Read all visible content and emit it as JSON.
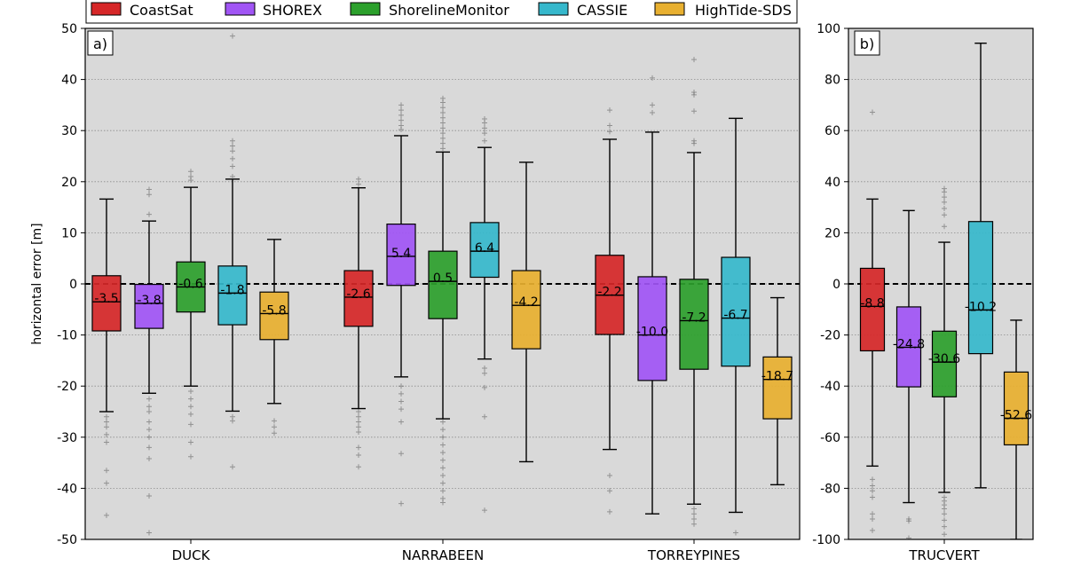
{
  "legend": {
    "entries": [
      {
        "name": "CoastSat",
        "color": "#d62728"
      },
      {
        "name": "SHOREX",
        "color": "#a155f5"
      },
      {
        "name": "ShorelineMonitor",
        "color": "#2ca02c"
      },
      {
        "name": "CASSIE",
        "color": "#36b8cc"
      },
      {
        "name": "HighTide-SDS",
        "color": "#e8b030"
      }
    ]
  },
  "chart_data": [
    {
      "type": "boxplot",
      "panel_label": "a)",
      "title": "",
      "xlabel": "",
      "ylabel": "horizontal error [m]",
      "ylim": [
        -50,
        50
      ],
      "yticks": [
        -50,
        -40,
        -30,
        -20,
        -10,
        0,
        10,
        20,
        30,
        40,
        50
      ],
      "grid": "horizontal dotted",
      "reference_line": 0,
      "categories": [
        "DUCK",
        "NARRABEEN",
        "TORREYPINES"
      ],
      "groups": [
        {
          "site": "DUCK",
          "boxes": [
            {
              "method": "CoastSat",
              "median": -3.5,
              "label": "-3.5",
              "q1": -9.2,
              "q3": 1.6,
              "whisker_low": -25,
              "whisker_high": 16.6,
              "outliers": [
                -26,
                -27,
                -28,
                -29.5,
                -31,
                -36.5,
                -39,
                -45.3
              ]
            },
            {
              "method": "SHOREX",
              "median": -3.8,
              "label": "-3.8",
              "q1": -8.7,
              "q3": -0.1,
              "whisker_low": -21.4,
              "whisker_high": 12.3,
              "outliers": [
                13.6,
                17.5,
                18.5,
                -22.5,
                -24,
                -25,
                -27,
                -28.5,
                -30,
                -32,
                -34.2,
                -41.5,
                -48.7
              ]
            },
            {
              "method": "ShorelineMonitor",
              "median": -0.6,
              "label": "-0.6",
              "q1": -5.5,
              "q3": 4.3,
              "whisker_low": -20,
              "whisker_high": 18.9,
              "outliers": [
                20.3,
                21,
                22,
                -21,
                -22.5,
                -24,
                -25.5,
                -27.5,
                -31,
                -33.8
              ]
            },
            {
              "method": "CASSIE",
              "median": -1.8,
              "label": "-1.8",
              "q1": -8,
              "q3": 3.5,
              "whisker_low": -24.9,
              "whisker_high": 20.5,
              "outliers": [
                21,
                23,
                24.5,
                26,
                27,
                28,
                48.5,
                -26,
                -26.8,
                -35.8
              ]
            },
            {
              "method": "HighTide-SDS",
              "median": -5.8,
              "label": "-5.8",
              "q1": -10.9,
              "q3": -1.6,
              "whisker_low": -23.4,
              "whisker_high": 8.7,
              "outliers": [
                -26.8,
                -28,
                -29.2
              ]
            }
          ]
        },
        {
          "site": "NARRABEEN",
          "boxes": [
            {
              "method": "CoastSat",
              "median": -2.6,
              "label": "-2.6",
              "q1": -8.3,
              "q3": 2.6,
              "whisker_low": -24.4,
              "whisker_high": 18.8,
              "outliers": [
                19.5,
                20.5,
                -25,
                -26,
                -27,
                -28,
                -29,
                -32,
                -33.5,
                -35.8
              ]
            },
            {
              "method": "SHOREX",
              "median": 5.4,
              "label": "5.4",
              "q1": -0.3,
              "q3": 11.7,
              "whisker_low": -18.2,
              "whisker_high": 29,
              "outliers": [
                30.2,
                31,
                32,
                33,
                34,
                35,
                -20,
                -21.5,
                -23,
                -24.5,
                -27,
                -33.2,
                -43
              ]
            },
            {
              "method": "ShorelineMonitor",
              "median": 0.5,
              "label": "0.5",
              "q1": -6.8,
              "q3": 6.4,
              "whisker_low": -26.4,
              "whisker_high": 25.8,
              "outliers": [
                26.5,
                27.5,
                28.5,
                29.5,
                30.5,
                31.5,
                32.5,
                33.5,
                34.5,
                35.5,
                36.3,
                -27,
                -28.5,
                -30,
                -31.5,
                -33,
                -34.5,
                -36,
                -37.5,
                -39,
                -40.5,
                -42,
                -42.8
              ]
            },
            {
              "method": "CASSIE",
              "median": 6.4,
              "label": "6.4",
              "q1": 1.3,
              "q3": 12,
              "whisker_low": -14.7,
              "whisker_high": 26.7,
              "outliers": [
                28,
                29.5,
                30.5,
                31.5,
                32.3,
                -16.5,
                -17.5,
                -20.3,
                -26,
                -44.3
              ]
            },
            {
              "method": "HighTide-SDS",
              "median": -4.2,
              "label": "-4.2",
              "q1": -12.7,
              "q3": 2.6,
              "whisker_low": -34.8,
              "whisker_high": 23.8,
              "outliers": []
            }
          ]
        },
        {
          "site": "TORREYPINES",
          "boxes": [
            {
              "method": "CoastSat",
              "median": -2.2,
              "label": "-2.2",
              "q1": -9.9,
              "q3": 5.6,
              "whisker_low": -32.4,
              "whisker_high": 28.3,
              "outliers": [
                29.8,
                31,
                34,
                -37.5,
                -40.5,
                -44.6
              ]
            },
            {
              "method": "SHOREX",
              "median": -10,
              "label": "-10.0",
              "q1": -18.9,
              "q3": 1.4,
              "whisker_low": -45,
              "whisker_high": 29.7,
              "outliers": [
                33.5,
                35,
                40.3
              ]
            },
            {
              "method": "ShorelineMonitor",
              "median": -7.2,
              "label": "-7.2",
              "q1": -16.7,
              "q3": 0.9,
              "whisker_low": -43.1,
              "whisker_high": 25.7,
              "outliers": [
                27.5,
                28,
                33.8,
                37,
                37.5,
                43.9,
                -44,
                -45,
                -46,
                -47
              ]
            },
            {
              "method": "CASSIE",
              "median": -6.7,
              "label": "-6.7",
              "q1": -16.1,
              "q3": 5.2,
              "whisker_low": -44.7,
              "whisker_high": 32.4,
              "outliers": [
                -48.7
              ]
            },
            {
              "method": "HighTide-SDS",
              "median": -18.7,
              "label": "-18.7",
              "q1": -26.4,
              "q3": -14.3,
              "whisker_low": -39.3,
              "whisker_high": -2.7,
              "outliers": []
            }
          ]
        }
      ]
    },
    {
      "type": "boxplot",
      "panel_label": "b)",
      "title": "",
      "xlabel": "",
      "ylabel": "",
      "ylim": [
        -100,
        100
      ],
      "yticks": [
        -100,
        -80,
        -60,
        -40,
        -20,
        0,
        20,
        40,
        60,
        80,
        100
      ],
      "grid": "horizontal dotted",
      "reference_line": 0,
      "categories": [
        "TRUCVERT"
      ],
      "groups": [
        {
          "site": "TRUCVERT",
          "boxes": [
            {
              "method": "CoastSat",
              "median": -8.8,
              "label": "-8.8",
              "q1": -26.2,
              "q3": 6.1,
              "whisker_low": -71.3,
              "whisker_high": 33.2,
              "outliers": [
                67.2,
                -76.5,
                -79,
                -81,
                -83.5,
                -90,
                -92,
                -96.5
              ]
            },
            {
              "method": "SHOREX",
              "median": -24.8,
              "label": "-24.8",
              "q1": -40.3,
              "q3": -9,
              "whisker_low": -85.6,
              "whisker_high": 28.7,
              "outliers": [
                -92,
                -92.8,
                -99.5
              ]
            },
            {
              "method": "ShorelineMonitor",
              "median": -30.6,
              "label": "-30.6",
              "q1": -44.2,
              "q3": -18.5,
              "whisker_low": -81.6,
              "whisker_high": 16.3,
              "outliers": [
                22.5,
                27,
                29.5,
                32,
                34,
                36,
                37.3,
                -83.5,
                -85,
                -86.5,
                -88,
                -90,
                -92.5,
                -95,
                -98
              ]
            },
            {
              "method": "CASSIE",
              "median": -10.2,
              "label": "-10.2",
              "q1": -27.3,
              "q3": 24.4,
              "whisker_low": -79.8,
              "whisker_high": 94.2,
              "outliers": []
            },
            {
              "method": "HighTide-SDS",
              "median": -52.6,
              "label": "-52.6",
              "q1": -63,
              "q3": -34.5,
              "whisker_low": -100,
              "whisker_high": -14.2,
              "outliers": []
            }
          ]
        }
      ]
    }
  ]
}
